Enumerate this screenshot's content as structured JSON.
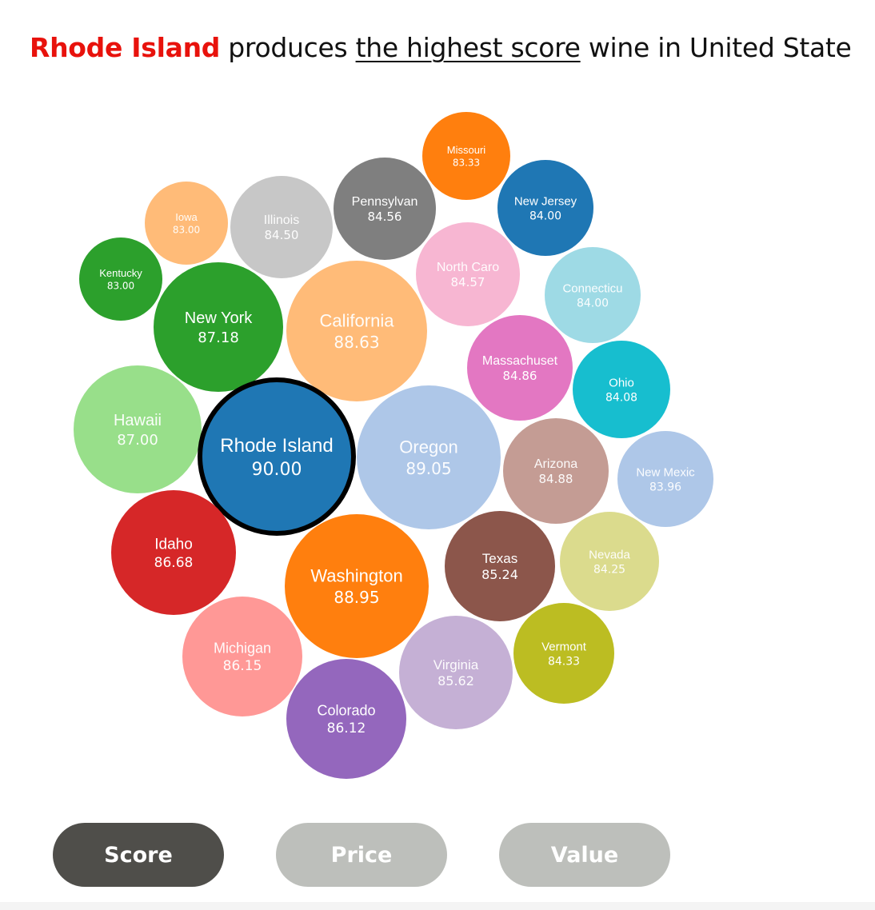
{
  "headline": {
    "highlight": "Rhode Island",
    "part1": " produces ",
    "underline": "the highest score",
    "part2": " wine in United State"
  },
  "tabs": [
    {
      "label": "Score",
      "active": true
    },
    {
      "label": "Price",
      "active": false
    },
    {
      "label": "Value",
      "active": false
    }
  ],
  "chart_data": {
    "type": "bubble",
    "highlighted": "Rhode Island",
    "bubbles": [
      {
        "label": "Missouri",
        "value": "83.33",
        "color": "#ff7f0e"
      },
      {
        "label": "New Jersey",
        "value": "84.00",
        "color": "#1f77b4"
      },
      {
        "label": "Pennsylvan",
        "value": "84.56",
        "color": "#7f7f7f"
      },
      {
        "label": "Iowa",
        "value": "83.00",
        "color": "#ffbb78"
      },
      {
        "label": "Illinois",
        "value": "84.50",
        "color": "#c7c7c7"
      },
      {
        "label": "Kentucky",
        "value": "83.00",
        "color": "#2ca02c"
      },
      {
        "label": "North Caro",
        "value": "84.57",
        "color": "#f7b6d2"
      },
      {
        "label": "Connecticu",
        "value": "84.00",
        "color": "#9edae5"
      },
      {
        "label": "New York",
        "value": "87.18",
        "color": "#2ca02c"
      },
      {
        "label": "California",
        "value": "88.63",
        "color": "#ffbb78"
      },
      {
        "label": "Massachuset",
        "value": "84.86",
        "color": "#e377c2"
      },
      {
        "label": "Ohio",
        "value": "84.08",
        "color": "#17becf"
      },
      {
        "label": "Hawaii",
        "value": "87.00",
        "color": "#98df8a"
      },
      {
        "label": "Rhode Island",
        "value": "90.00",
        "color": "#1f77b4"
      },
      {
        "label": "Oregon",
        "value": "89.05",
        "color": "#aec7e8"
      },
      {
        "label": "Arizona",
        "value": "84.88",
        "color": "#c49c94"
      },
      {
        "label": "New Mexic",
        "value": "83.96",
        "color": "#aec7e8"
      },
      {
        "label": "Idaho",
        "value": "86.68",
        "color": "#d62728"
      },
      {
        "label": "Washington",
        "value": "88.95",
        "color": "#ff7f0e"
      },
      {
        "label": "Texas",
        "value": "85.24",
        "color": "#8c564b"
      },
      {
        "label": "Nevada",
        "value": "84.25",
        "color": "#dbdb8d"
      },
      {
        "label": "Michigan",
        "value": "86.15",
        "color": "#ff9896"
      },
      {
        "label": "Virginia",
        "value": "85.62",
        "color": "#c5b0d5"
      },
      {
        "label": "Vermont",
        "value": "84.33",
        "color": "#bcbd22"
      },
      {
        "label": "Colorado",
        "value": "86.12",
        "color": "#9467bd"
      }
    ]
  }
}
